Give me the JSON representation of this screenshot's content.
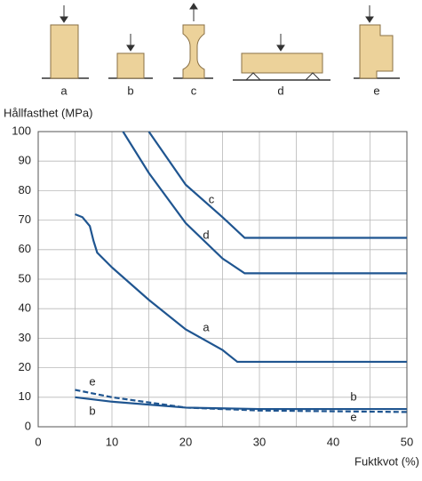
{
  "chart_data": {
    "type": "line",
    "y_label": "Hållfasthet (MPa)",
    "x_label": "Fuktkvot (%)",
    "xlim": [
      0,
      50
    ],
    "xticks": [
      0,
      10,
      20,
      30,
      40,
      50
    ],
    "x_minor_grid": [
      5,
      15,
      25,
      35,
      45
    ],
    "ylim": [
      0,
      100
    ],
    "yticks": [
      0,
      10,
      20,
      30,
      40,
      50,
      60,
      70,
      80,
      90,
      100
    ],
    "grid": true,
    "series": [
      {
        "name": "a",
        "color": "#1f5590",
        "dashed": false,
        "x": [
          5,
          6,
          7,
          7.5,
          8,
          10,
          15,
          20,
          25,
          27,
          50
        ],
        "values": [
          72,
          71,
          68,
          63,
          59,
          54,
          43,
          33,
          26,
          22,
          22
        ]
      },
      {
        "name": "b",
        "color": "#1f5590",
        "dashed": false,
        "x": [
          5,
          10,
          20,
          30,
          50
        ],
        "values": [
          10,
          8.5,
          6.5,
          6,
          6
        ]
      },
      {
        "name": "c",
        "color": "#1f5590",
        "dashed": false,
        "x": [
          15,
          20,
          25,
          28,
          50
        ],
        "values": [
          100,
          82,
          71,
          64,
          64
        ]
      },
      {
        "name": "d",
        "color": "#1f5590",
        "dashed": false,
        "x": [
          11.5,
          15,
          20,
          25,
          28,
          50
        ],
        "values": [
          100,
          86,
          69,
          57,
          52,
          52
        ]
      },
      {
        "name": "e",
        "color": "#1f5590",
        "dashed": true,
        "x": [
          5,
          10,
          20,
          30,
          50
        ],
        "values": [
          12.5,
          10,
          6.5,
          5.5,
          5
        ]
      }
    ]
  }
}
